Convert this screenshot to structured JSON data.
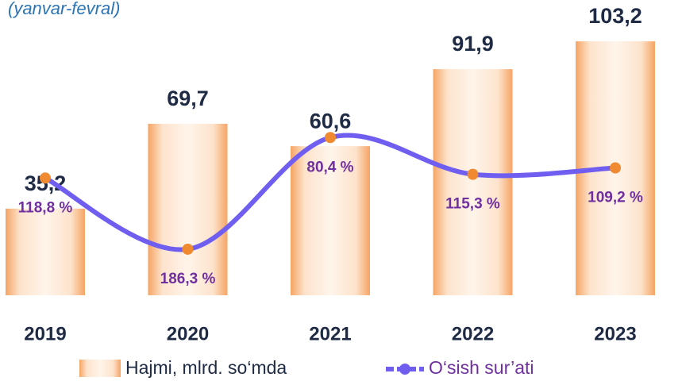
{
  "chart_data": {
    "type": "bar_line",
    "subtitle": "(yanvar-fevral)",
    "categories": [
      "2019",
      "2020",
      "2021",
      "2022",
      "2023"
    ],
    "ylim": [
      0,
      120
    ],
    "y2lim": [
      230,
      -50
    ],
    "series": [
      {
        "name": "Hajmi, mlrd. so‘mda",
        "color": "#f5a25d",
        "values": [
          35.2,
          69.7,
          60.6,
          91.9,
          103.2
        ],
        "value_labels": [
          "35,2",
          "69,7",
          "60,6",
          "91,9",
          "103,2"
        ]
      },
      {
        "name": "O‘sish sur’ati",
        "color": "#6f5ef0",
        "marker_color": "#f08a30",
        "axis": "y2",
        "values": [
          118.8,
          186.3,
          80.4,
          115.3,
          109.2
        ],
        "value_labels": [
          "118,8 %",
          "186,3 %",
          "80,4 %",
          "115,3 %",
          "109,2 %"
        ]
      }
    ]
  }
}
